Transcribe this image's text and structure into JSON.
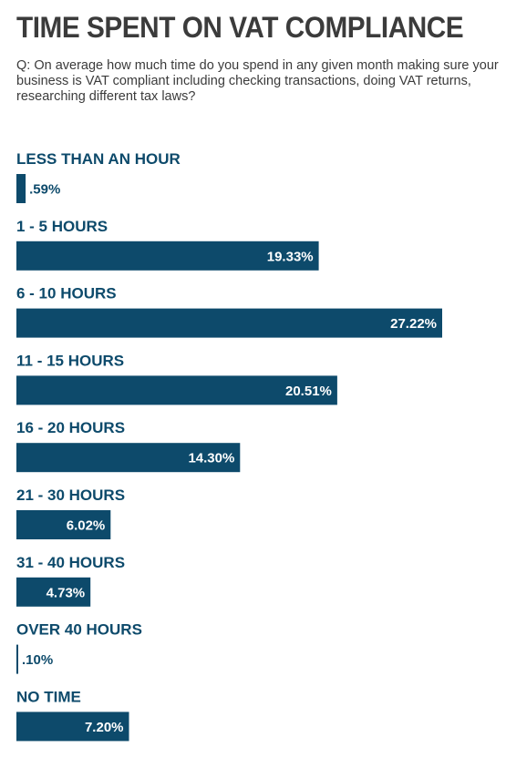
{
  "header": {
    "title": "TIME SPENT ON VAT COMPLIANCE",
    "question": "Q: On average how much time do you spend in any given month making sure your business is VAT compliant including checking transactions, doing VAT returns, researching different tax laws?"
  },
  "colors": {
    "bar": "#0d4a6b",
    "label": "#0d4a6b",
    "title": "#3b3b3b"
  },
  "chart_data": {
    "type": "bar",
    "orientation": "horizontal",
    "categories": [
      "LESS THAN AN HOUR",
      "1 - 5 HOURS",
      "6 - 10 HOURS",
      "11  - 15 HOURS",
      "16 - 20 HOURS",
      "21 - 30 HOURS",
      "31 - 40 HOURS",
      "OVER 40  HOURS",
      "NO TIME"
    ],
    "values": [
      0.59,
      19.33,
      27.22,
      20.51,
      14.3,
      6.02,
      4.73,
      0.1,
      7.2
    ],
    "value_labels": [
      ".59%",
      "19.33%",
      "27.22%",
      "20.51%",
      "14.30%",
      "6.02%",
      "4.73%",
      ".10%",
      "7.20%"
    ],
    "unit": "%",
    "grid": false,
    "legend": "none"
  }
}
